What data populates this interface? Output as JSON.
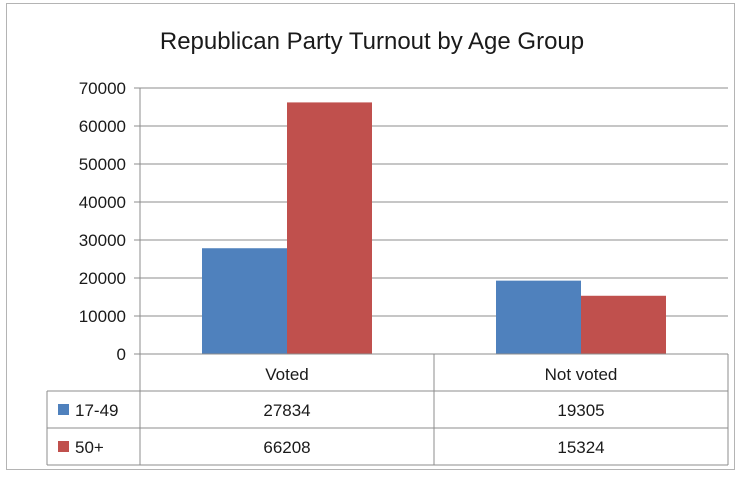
{
  "chart_data": {
    "type": "bar",
    "title": "Republican Party Turnout by Age Group",
    "categories": [
      "Voted",
      "Not voted"
    ],
    "series": [
      {
        "name": "17-49",
        "color": "#4f81bd",
        "values": [
          27834,
          19305
        ]
      },
      {
        "name": "50+",
        "color": "#c0504d",
        "values": [
          66208,
          15324
        ]
      }
    ],
    "ylim": [
      0,
      70000
    ],
    "yticks": [
      "0",
      "10000",
      "20000",
      "30000",
      "40000",
      "50000",
      "60000",
      "70000"
    ],
    "grid": true,
    "legend": "data-table",
    "data_table": {
      "rows": [
        {
          "label": "17-49",
          "values": [
            "27834",
            "19305"
          ]
        },
        {
          "label": "50+",
          "values": [
            "66208",
            "15324"
          ]
        }
      ]
    }
  }
}
